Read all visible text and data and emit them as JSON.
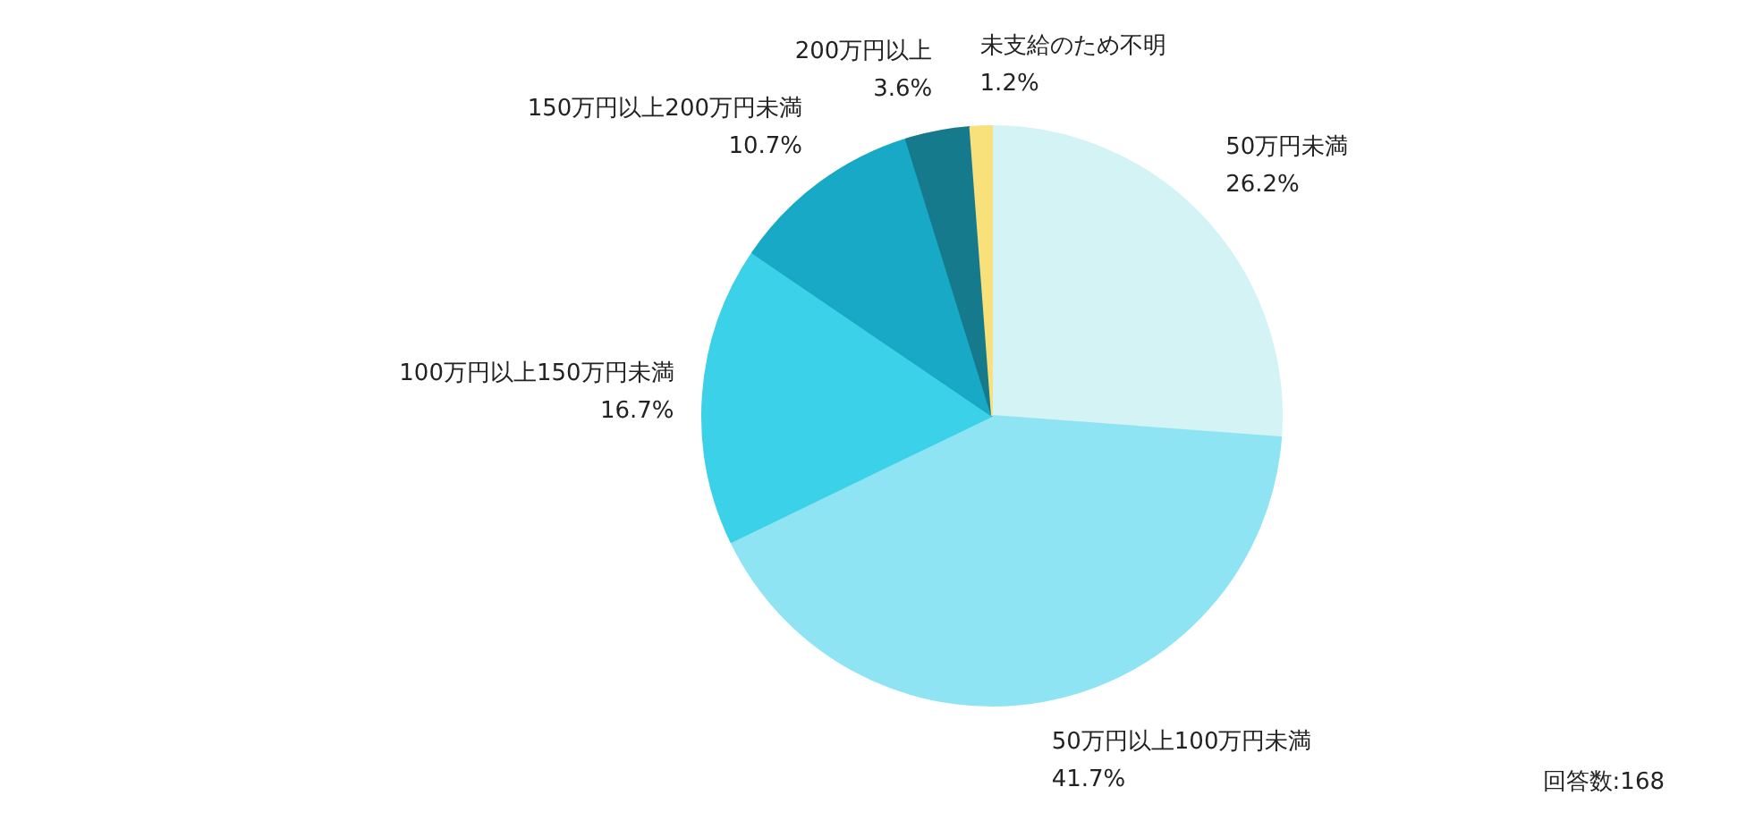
{
  "chart_data": {
    "type": "pie",
    "categories": [
      "50万円未満",
      "50万円以上100万円未満",
      "100万円以上150万円未満",
      "150万円以上200万円未満",
      "200万円以上",
      "未支給のため不明"
    ],
    "values": [
      26.2,
      41.7,
      16.7,
      10.7,
      3.6,
      1.2
    ],
    "colors": [
      "#d3f3f5",
      "#8ee4f3",
      "#3bd1e8",
      "#17a9c6",
      "#157a8c",
      "#f8e07a"
    ],
    "value_labels": [
      "26.2%",
      "41.7%",
      "16.7%",
      "10.7%",
      "3.6%",
      "1.2%"
    ],
    "annotations": [
      "回答数:168"
    ]
  }
}
